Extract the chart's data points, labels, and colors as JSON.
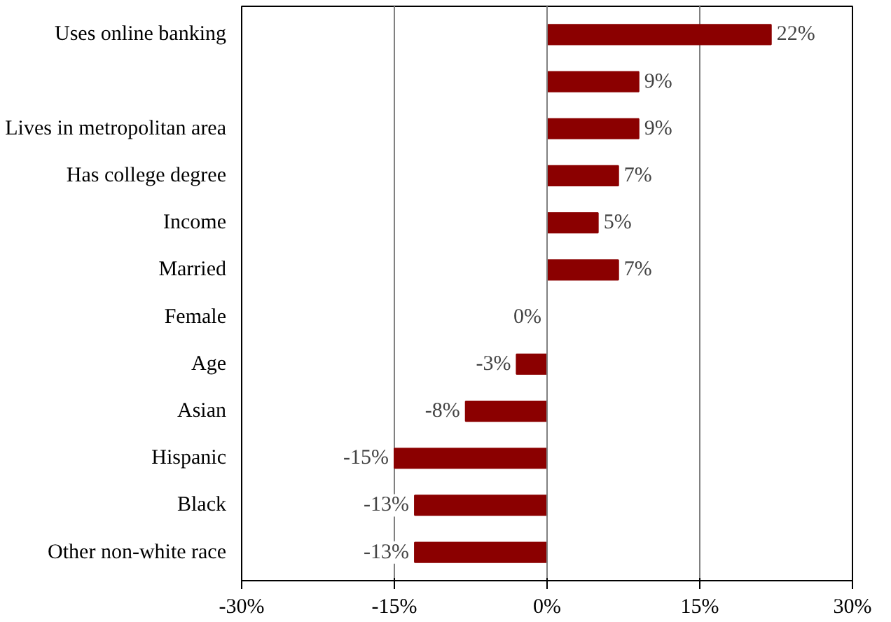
{
  "chart_data": {
    "type": "bar",
    "orientation": "horizontal",
    "categories": [
      "Uses online banking",
      null,
      "Lives in metropolitan area",
      "Has college degree",
      "Income",
      "Married",
      "Female",
      "Age",
      "Asian",
      "Hispanic",
      "Black",
      "Other non-white race"
    ],
    "values": [
      22,
      9,
      9,
      7,
      5,
      7,
      0,
      -3,
      -8,
      -15,
      -13,
      -13
    ],
    "value_labels": [
      "22%",
      "9%",
      "9%",
      "7%",
      "5%",
      "7%",
      "0%",
      "-3%",
      "-8%",
      "-15%",
      "-13%",
      "-13%"
    ],
    "color": "#8b0000",
    "xlim": [
      -30,
      30
    ],
    "xticks": [
      {
        "value": -30,
        "label": "-30%"
      },
      {
        "value": -15,
        "label": "-15%"
      },
      {
        "value": 0,
        "label": "0%"
      },
      {
        "value": 15,
        "label": "15%"
      },
      {
        "value": 30,
        "label": "30%"
      }
    ],
    "grid": "x"
  }
}
